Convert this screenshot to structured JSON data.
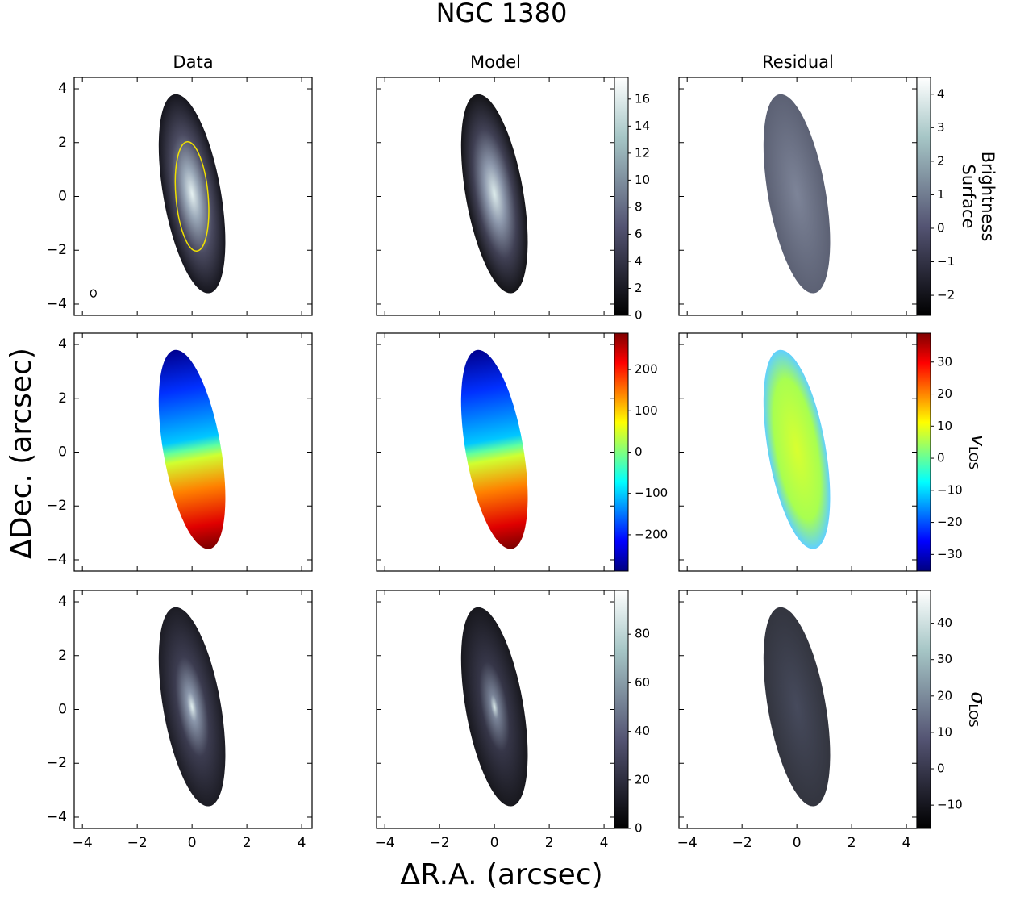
{
  "chart_data": {
    "type": "image-grid",
    "title": "NGC 1380",
    "x_label": "ΔR.A. (arcsec)",
    "y_label": "ΔDec. (arcsec)",
    "column_titles": [
      "Data",
      "Model",
      "Residual"
    ],
    "xlim": [
      -4.3,
      4.38
    ],
    "ylim": [
      -4.42,
      4.42
    ],
    "xticks": [
      {
        "value": -4,
        "label": "−4"
      },
      {
        "value": -2,
        "label": "−2"
      },
      0,
      2,
      4
    ],
    "yticks": [
      {
        "value": -4,
        "label": "−4"
      },
      {
        "value": -2,
        "label": "−2"
      },
      0,
      2,
      4
    ],
    "rows": [
      {
        "label": {
          "lines": [
            "Surface",
            "Brightness"
          ]
        },
        "colormap": "bone",
        "colorbars": [
          {
            "lim": [
              0,
              17.6
            ],
            "ticks": [
              0,
              2,
              4,
              6,
              8,
              10,
              12,
              14,
              16
            ]
          },
          {
            "lim": [
              -2.6,
              4.5
            ],
            "ticks": [
              {
                "value": -2,
                "label": "−2"
              },
              {
                "value": -1,
                "label": "−1"
              },
              0,
              1,
              2,
              3,
              4
            ]
          }
        ]
      },
      {
        "label": {
          "text": "v",
          "subscript": "LOS"
        },
        "colormap": "jet",
        "colorbars": [
          {
            "lim": [
              -288,
              288
            ],
            "ticks": [
              {
                "value": -200,
                "label": "−200"
              },
              {
                "value": -100,
                "label": "−100"
              },
              0,
              100,
              200
            ]
          },
          {
            "lim": [
              -35.2,
              39
            ],
            "ticks": [
              {
                "value": -30,
                "label": "−30"
              },
              {
                "value": -20,
                "label": "−20"
              },
              {
                "value": -10,
                "label": "−10"
              },
              0,
              10,
              20,
              30
            ]
          }
        ]
      },
      {
        "label": {
          "text": "σ",
          "subscript": "LOS"
        },
        "colormap": "bone",
        "colorbars": [
          {
            "lim": [
              0,
              98
            ],
            "ticks": [
              0,
              20,
              40,
              60,
              80
            ]
          },
          {
            "lim": [
              -16.4,
              49
            ],
            "ticks": [
              {
                "value": -10,
                "label": "−10"
              },
              0,
              10,
              20,
              30,
              40
            ]
          }
        ]
      }
    ]
  }
}
